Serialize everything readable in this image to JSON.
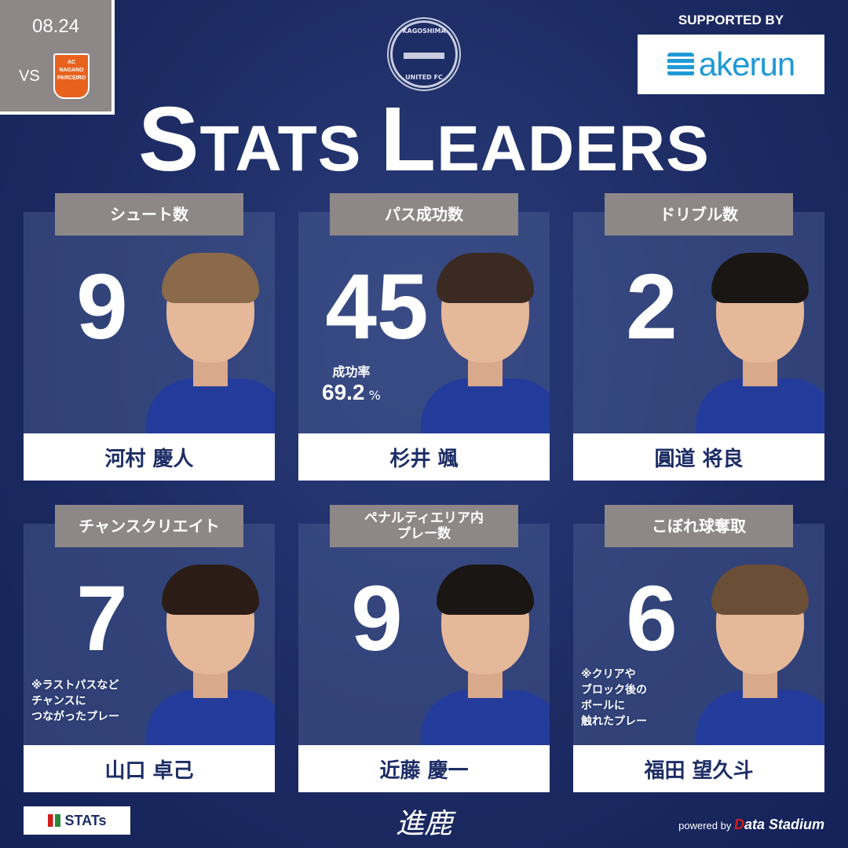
{
  "match": {
    "date": "08.24",
    "vs": "VS",
    "opponent_logo_text": "AC NAGANO PARCEIRO"
  },
  "club": {
    "crest_top": "KAGOSHIMA",
    "crest_bottom": "UNITED FC"
  },
  "sponsor": {
    "label": "SUPPORTED BY",
    "name": "akerun",
    "color": "#1e9ad6"
  },
  "title": {
    "first_cap": "S",
    "first_rest": "TATS ",
    "second_cap": "L",
    "second_rest": "EADERS"
  },
  "cards": [
    {
      "category": "シュート数",
      "value": "9",
      "player": "河村 慶人"
    },
    {
      "category": "パス成功数",
      "value": "45",
      "player": "杉井 颯",
      "rate_label": "成功率",
      "rate_value": "69.2",
      "rate_unit": "%"
    },
    {
      "category": "ドリブル数",
      "value": "2",
      "player": "圓道 将良"
    },
    {
      "category": "チャンスクリエイト",
      "value": "7",
      "player": "山口 卓己",
      "note": "※ラストパスなど\nチャンスに\nつながったプレー"
    },
    {
      "category": "ペナルティエリア内\nプレー数",
      "value": "9",
      "player": "近藤 慶一"
    },
    {
      "category": "こぼれ球奪取",
      "value": "6",
      "player": "福田 望久斗",
      "note": "※クリアや\nブロック後の\nボールに\n触れたプレー"
    }
  ],
  "footer": {
    "stats_logo": "STATs",
    "slogan": "進鹿",
    "powered_by": "powered by",
    "data_stadium_d": "D",
    "data_stadium_rest": "ata Stadium"
  },
  "colors": {
    "background": "#1d2d66",
    "label_box": "#8d8788",
    "accent_red": "#d21e1e"
  }
}
